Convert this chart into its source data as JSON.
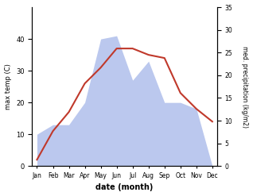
{
  "months": [
    "Jan",
    "Feb",
    "Mar",
    "Apr",
    "May",
    "Jun",
    "Jul",
    "Aug",
    "Sep",
    "Oct",
    "Nov",
    "Dec"
  ],
  "temp": [
    2,
    11,
    17,
    26,
    31,
    37,
    37,
    35,
    34,
    23,
    18,
    14
  ],
  "precip_left": [
    10,
    13,
    13,
    20,
    40,
    41,
    27,
    33,
    20,
    20,
    18,
    0
  ],
  "temp_color": "#c0392b",
  "precip_fill_color": "#bbc8ee",
  "xlabel": "date (month)",
  "ylabel_left": "max temp (C)",
  "ylabel_right": "med. precipitation (kg/m2)",
  "temp_ylim": [
    0,
    50
  ],
  "precip_ylim": [
    0,
    35
  ],
  "left_ylim": [
    0,
    50
  ],
  "left_yticks": [
    0,
    10,
    20,
    30,
    40
  ],
  "right_yticks": [
    0,
    5,
    10,
    15,
    20,
    25,
    30,
    35
  ]
}
